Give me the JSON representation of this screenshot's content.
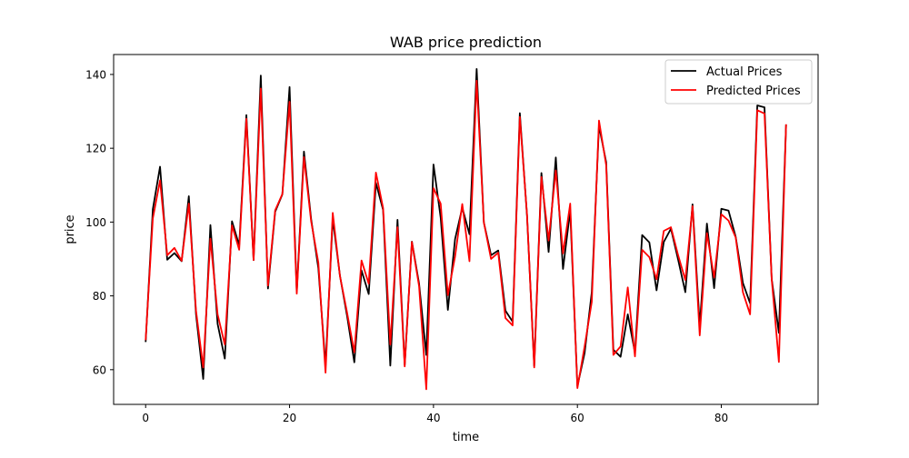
{
  "chart_data": {
    "type": "line",
    "title": "WAB price prediction",
    "xlabel": "time",
    "ylabel": "price",
    "xlim": [
      -4.45,
      93.45
    ],
    "ylim": [
      50.6,
      145.4
    ],
    "xticks": [
      0,
      20,
      40,
      60,
      80
    ],
    "yticks": [
      60,
      80,
      100,
      120,
      140
    ],
    "grid": false,
    "legend_position": "top-right",
    "x": [
      0,
      1,
      2,
      3,
      4,
      5,
      6,
      7,
      8,
      9,
      10,
      11,
      12,
      13,
      14,
      15,
      16,
      17,
      18,
      19,
      20,
      21,
      22,
      23,
      24,
      25,
      26,
      27,
      28,
      29,
      30,
      31,
      32,
      33,
      34,
      35,
      36,
      37,
      38,
      39,
      40,
      41,
      42,
      43,
      44,
      45,
      46,
      47,
      48,
      49,
      50,
      51,
      52,
      53,
      54,
      55,
      56,
      57,
      58,
      59,
      60,
      61,
      62,
      63,
      64,
      65,
      66,
      67,
      68,
      69,
      70,
      71,
      72,
      73,
      74,
      75,
      76,
      77,
      78,
      79,
      80,
      81,
      82,
      83,
      84,
      85,
      86,
      87,
      88,
      89
    ],
    "series": [
      {
        "name": "Actual Prices",
        "color": "#000000",
        "values": [
          67.5,
          103.5,
          115.0,
          89.8,
          91.6,
          89.4,
          107.0,
          75.0,
          57.5,
          99.2,
          72.4,
          63.0,
          100.2,
          93.7,
          129.0,
          89.7,
          139.7,
          82.0,
          102.8,
          107.5,
          136.6,
          81.1,
          119.1,
          100.8,
          87.5,
          61.1,
          100.9,
          85.5,
          74.5,
          62.0,
          86.9,
          80.5,
          110.6,
          103.3,
          61.1,
          100.6,
          61.3,
          94.7,
          83.3,
          64.0,
          115.6,
          101.2,
          76.2,
          95.4,
          103.9,
          96.7,
          141.5,
          99.9,
          91.0,
          92.3,
          76.0,
          73.0,
          129.5,
          101.7,
          61.0,
          113.3,
          91.9,
          117.5,
          87.3,
          103.1,
          55.5,
          64.5,
          81.0,
          126.1,
          116.2,
          65.4,
          63.5,
          75.0,
          64.6,
          96.5,
          94.5,
          81.5,
          94.6,
          98.2,
          89.8,
          81.0,
          104.8,
          71.9,
          99.6,
          82.1,
          103.6,
          103.1,
          96.0,
          83.5,
          78.0,
          131.6,
          131.1,
          84.6,
          70.0,
          126.4
        ]
      },
      {
        "name": "Predicted Prices",
        "color": "#ff0000",
        "values": [
          68.0,
          101.0,
          111.3,
          91.0,
          93.0,
          89.5,
          105.0,
          76.0,
          60.6,
          95.5,
          75.0,
          66.8,
          99.1,
          92.5,
          128.0,
          89.7,
          136.2,
          82.8,
          103.2,
          107.6,
          132.6,
          80.6,
          117.6,
          100.2,
          89.0,
          59.2,
          102.5,
          85.4,
          75.4,
          64.7,
          89.6,
          83.3,
          113.4,
          103.8,
          66.8,
          98.6,
          60.9,
          94.6,
          82.6,
          54.7,
          109.2,
          105.0,
          80.2,
          90.7,
          104.9,
          89.4,
          138.3,
          99.9,
          90.0,
          91.7,
          74.0,
          72.0,
          128.5,
          102.0,
          60.6,
          112.2,
          95.0,
          114.0,
          91.5,
          105.0,
          55.0,
          66.3,
          78.4,
          127.5,
          115.4,
          64.0,
          66.3,
          82.3,
          63.6,
          92.5,
          90.5,
          84.5,
          97.6,
          98.6,
          91.0,
          84.3,
          104.3,
          69.3,
          97.0,
          85.0,
          102.1,
          100.4,
          95.8,
          81.0,
          75.0,
          130.3,
          129.4,
          84.6,
          62.1,
          126.5
        ]
      }
    ]
  }
}
